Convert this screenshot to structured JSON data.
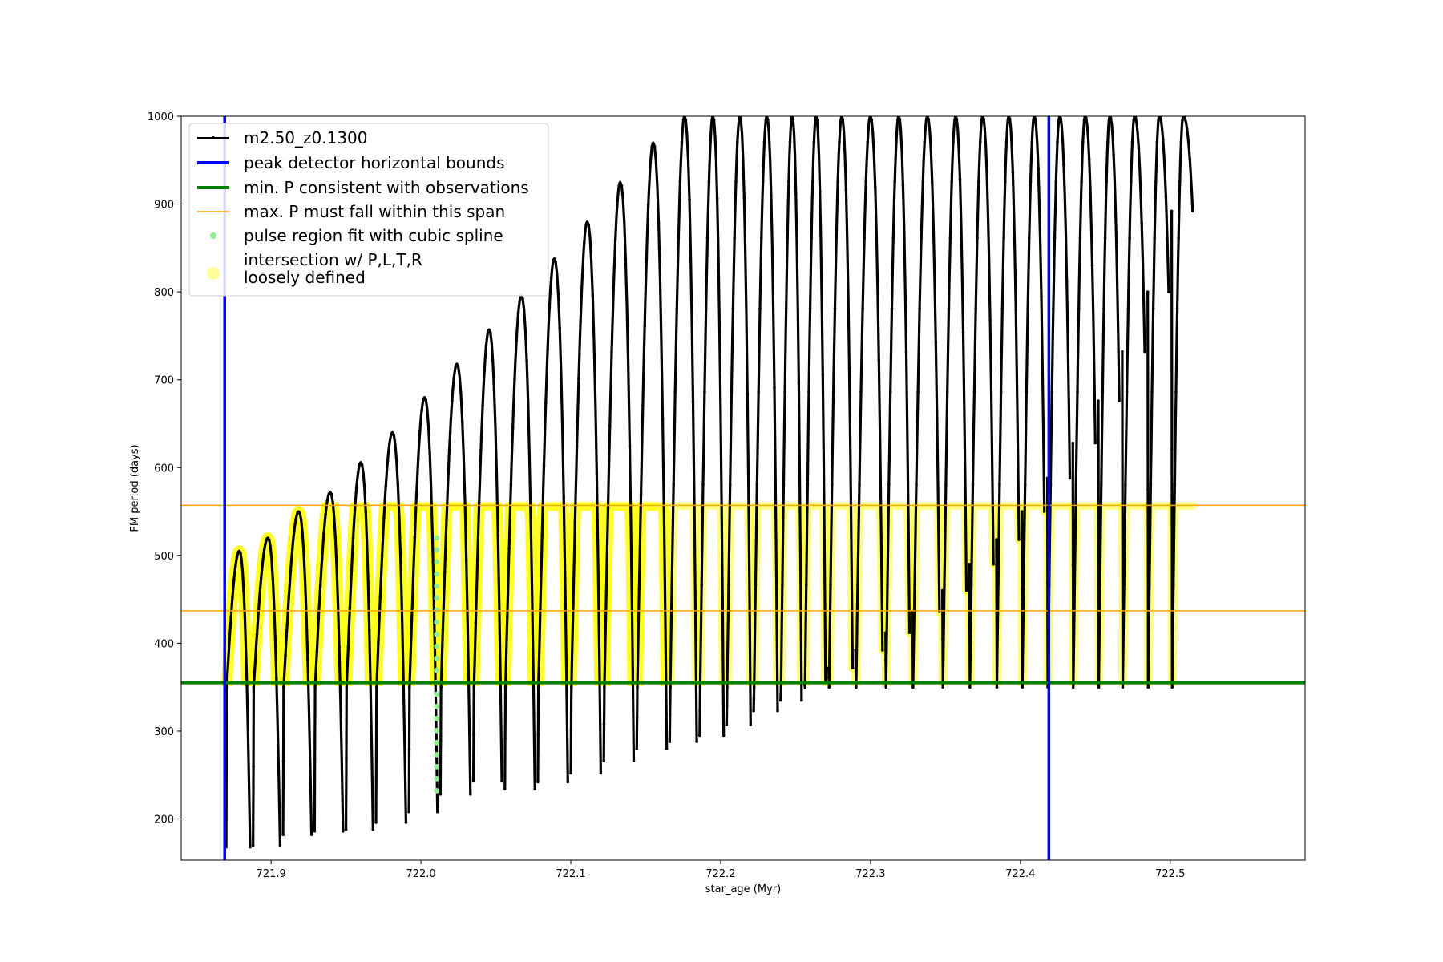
{
  "chart_data": {
    "type": "line",
    "title": "",
    "xlabel": "star_age (Myr)",
    "ylabel": "FM period (days)",
    "xlim": [
      721.84,
      722.59
    ],
    "ylim": [
      153,
      1000
    ],
    "xticks": [
      721.9,
      722.0,
      722.1,
      722.2,
      722.3,
      722.4,
      722.5
    ],
    "xtick_labels": [
      "721.9",
      "722.0",
      "722.1",
      "722.2",
      "722.3",
      "722.4",
      "722.5"
    ],
    "yticks": [
      200,
      300,
      400,
      500,
      600,
      700,
      800,
      900,
      1000
    ],
    "ytick_labels": [
      "200",
      "300",
      "400",
      "500",
      "600",
      "700",
      "800",
      "900",
      "1000"
    ],
    "grid": false,
    "legend_position": "top-left",
    "legend": [
      {
        "label": "m2.50_z0.1300",
        "style": "line-marker",
        "color": "#000000"
      },
      {
        "label": "peak detector horizontal bounds",
        "style": "thick-line",
        "color": "#0000ff"
      },
      {
        "label": "min. P consistent with observations",
        "style": "thick-line",
        "color": "#008000"
      },
      {
        "label": "max. P must fall within this span",
        "style": "thin-line",
        "color": "#ffa500"
      },
      {
        "label": "pulse region fit with cubic spline",
        "style": "dot",
        "color": "#90ee90"
      },
      {
        "label": "intersection w/ P,L,T,R\nloosely defined",
        "style": "big-dot",
        "color": "#ffff99"
      }
    ],
    "colors": {
      "series": "#000000",
      "vertical_bounds": "#0000ff",
      "min_p": "#008000",
      "max_p_span": "#ffa500",
      "spline": "#90ee90",
      "intersection": "#ffff00"
    },
    "vertical_bounds_x": [
      721.869,
      722.419
    ],
    "min_p_line": 355,
    "max_p_span": [
      437,
      557
    ],
    "series": [
      {
        "name": "m2.50_z0.1300",
        "pulses": [
          {
            "start": 721.87,
            "end": 721.886,
            "min": 168,
            "max": 505
          },
          {
            "start": 721.888,
            "end": 721.906,
            "min": 170,
            "max": 520
          },
          {
            "start": 721.908,
            "end": 721.927,
            "min": 182,
            "max": 550
          },
          {
            "start": 721.929,
            "end": 721.948,
            "min": 186,
            "max": 572
          },
          {
            "start": 721.95,
            "end": 721.968,
            "min": 188,
            "max": 606
          },
          {
            "start": 721.97,
            "end": 721.99,
            "min": 196,
            "max": 640
          },
          {
            "start": 721.992,
            "end": 722.011,
            "min": 208,
            "max": 680
          },
          {
            "start": 722.013,
            "end": 722.033,
            "min": 228,
            "max": 718
          },
          {
            "start": 722.035,
            "end": 722.054,
            "min": 243,
            "max": 757
          },
          {
            "start": 722.056,
            "end": 722.076,
            "min": 234,
            "max": 796
          },
          {
            "start": 722.078,
            "end": 722.098,
            "min": 242,
            "max": 838
          },
          {
            "start": 722.1,
            "end": 722.12,
            "min": 252,
            "max": 880
          },
          {
            "start": 722.122,
            "end": 722.142,
            "min": 266,
            "max": 925
          },
          {
            "start": 722.144,
            "end": 722.164,
            "min": 280,
            "max": 970
          },
          {
            "start": 722.166,
            "end": 722.184,
            "min": 288,
            "max": 1000
          },
          {
            "start": 722.186,
            "end": 722.202,
            "min": 295,
            "max": 1000
          },
          {
            "start": 722.204,
            "end": 722.22,
            "min": 307,
            "max": 1000
          },
          {
            "start": 722.222,
            "end": 722.238,
            "min": 323,
            "max": 1000
          },
          {
            "start": 722.24,
            "end": 722.254,
            "min": 335,
            "max": 1000
          },
          {
            "start": 722.256,
            "end": 722.27,
            "min": 355,
            "max": 1000
          },
          {
            "start": 722.272,
            "end": 722.288,
            "min": 372,
            "max": 1000
          },
          {
            "start": 722.29,
            "end": 722.308,
            "min": 392,
            "max": 1000
          },
          {
            "start": 722.31,
            "end": 722.326,
            "min": 412,
            "max": 1000
          },
          {
            "start": 722.328,
            "end": 722.346,
            "min": 436,
            "max": 1000
          },
          {
            "start": 722.348,
            "end": 722.364,
            "min": 460,
            "max": 1000
          },
          {
            "start": 722.366,
            "end": 722.382,
            "min": 490,
            "max": 1000
          },
          {
            "start": 722.384,
            "end": 722.399,
            "min": 518,
            "max": 1000
          },
          {
            "start": 722.401,
            "end": 722.416,
            "min": 550,
            "max": 1000
          },
          {
            "start": 722.418,
            "end": 722.433,
            "min": 588,
            "max": 1000
          },
          {
            "start": 722.435,
            "end": 722.45,
            "min": 628,
            "max": 1000
          },
          {
            "start": 722.452,
            "end": 722.466,
            "min": 676,
            "max": 1000
          },
          {
            "start": 722.468,
            "end": 722.483,
            "min": 732,
            "max": 1000
          },
          {
            "start": 722.485,
            "end": 722.499,
            "min": 800,
            "max": 1000
          },
          {
            "start": 722.501,
            "end": 722.515,
            "min": 892,
            "max": 1000
          }
        ]
      }
    ],
    "spline_points": {
      "x": 722.0105,
      "y_range": [
        232,
        520
      ]
    }
  }
}
